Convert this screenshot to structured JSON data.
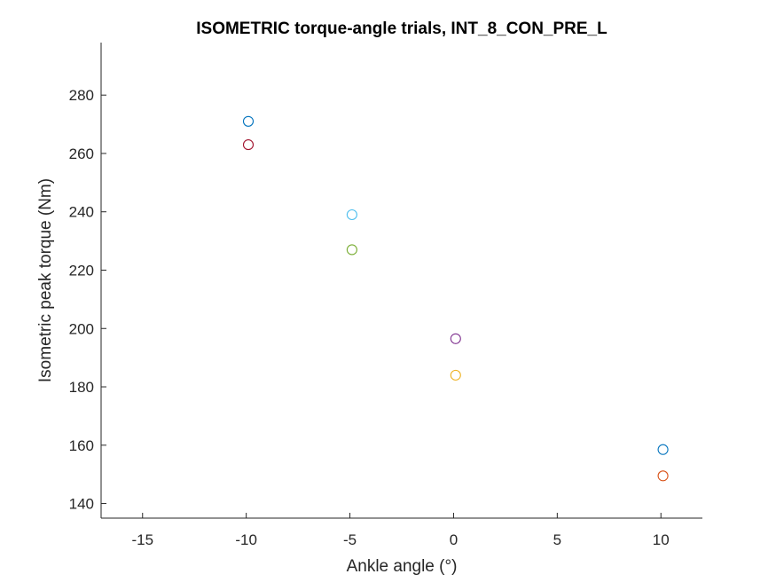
{
  "chart_data": {
    "type": "scatter",
    "title": "ISOMETRIC torque-angle trials, INT_8_CON_PRE_L",
    "xlabel": "Ankle angle (°)",
    "ylabel": "Isometric peak torque (Nm)",
    "xlim": [
      -17,
      12
    ],
    "ylim": [
      135,
      298
    ],
    "xticks": [
      -15,
      -10,
      -5,
      0,
      5,
      10
    ],
    "yticks": [
      140,
      160,
      180,
      200,
      220,
      240,
      260,
      280
    ],
    "grid": false,
    "box": false,
    "points": [
      {
        "x": -9.9,
        "y": 271,
        "color": "#0072BD"
      },
      {
        "x": -9.9,
        "y": 263,
        "color": "#A2142F"
      },
      {
        "x": -4.9,
        "y": 239,
        "color": "#4DBEEE"
      },
      {
        "x": -4.9,
        "y": 227,
        "color": "#77AC30"
      },
      {
        "x": 0.1,
        "y": 196.5,
        "color": "#7E2F8E"
      },
      {
        "x": 0.1,
        "y": 184,
        "color": "#EDB120"
      },
      {
        "x": 10.1,
        "y": 158.5,
        "color": "#0072BD"
      },
      {
        "x": 10.1,
        "y": 149.5,
        "color": "#D95319"
      }
    ]
  }
}
